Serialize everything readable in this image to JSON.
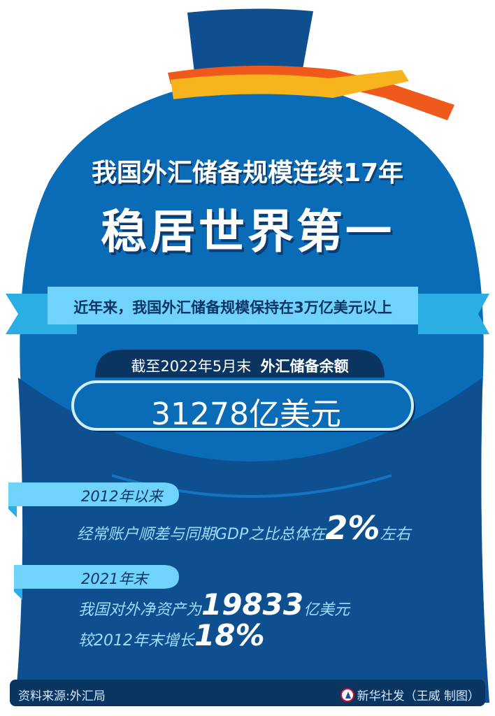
{
  "header": {
    "title_line1": "我国外汇储备规模连续17年",
    "title_line2": "稳居世界第一"
  },
  "banner": {
    "text": "近年来，我国外汇储备规模保持在3万亿美元以上"
  },
  "reserve": {
    "as_of_label": "截至2022年5月末",
    "metric_label": "外汇储备余额",
    "amount": "31278亿美元"
  },
  "facts": [
    {
      "tag": "2012年以来",
      "prefix": "经常账户顺差与同期GDP之比总体在",
      "highlight": "2%",
      "suffix": "左右"
    },
    {
      "tag": "2021年末",
      "line1_prefix": "我国对外净资产为",
      "line1_highlight": "19833",
      "line1_suffix": "亿美元",
      "line2_prefix": "较2012年末增长",
      "line2_highlight": "18%"
    }
  ],
  "footer": {
    "source": "资料来源:外汇局",
    "credit": "新华社发（王威  制图）",
    "logo_icon": "xinhua-logo-icon"
  },
  "colors": {
    "bag_blue": "#0a6cb6",
    "bag_dark": "#0d4f8f",
    "navy": "#0b3561",
    "light_blue": "#6fd3fb",
    "ribbon_blue": "#2aaee4",
    "band_yellow": "#f6b51d",
    "band_orange": "#ef5a1c"
  }
}
